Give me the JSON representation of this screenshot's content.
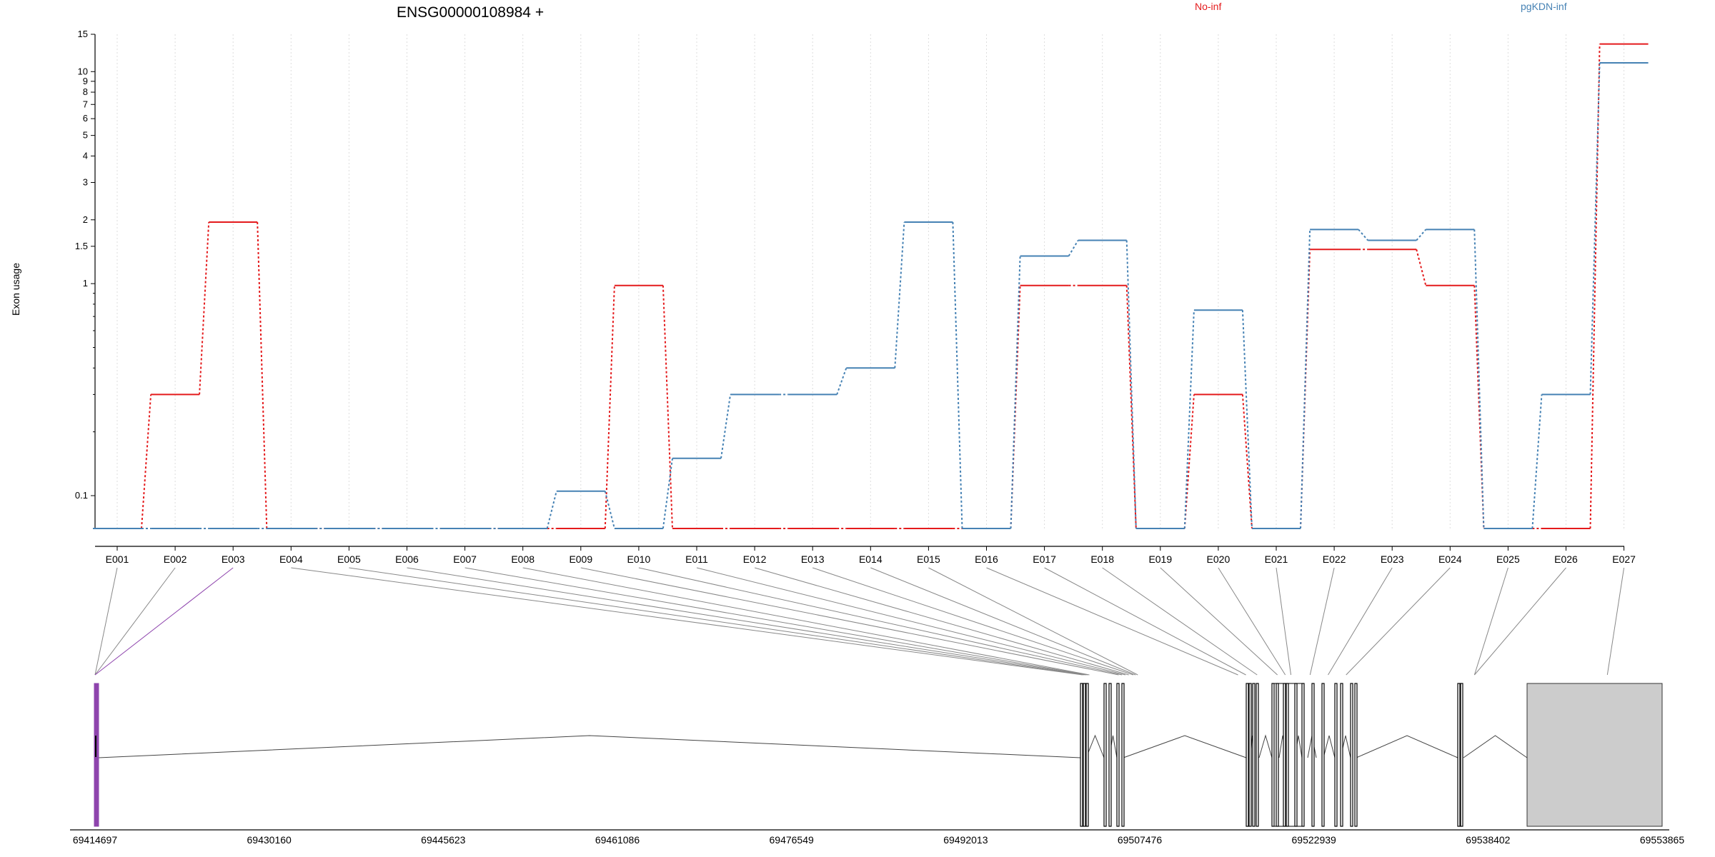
{
  "chart_data": {
    "type": "line",
    "title": "ENSG00000108984 +",
    "ylabel": "Exon usage",
    "y_scale": "log",
    "ylim": [
      0.07,
      15
    ],
    "yticks": [
      0.1,
      1,
      1.5,
      2,
      3,
      4,
      5,
      6,
      7,
      8,
      9,
      10,
      15
    ],
    "grid": "vertical dotted lines at each exon",
    "legend_position": "top-right",
    "categories": [
      "E001",
      "E002",
      "E003",
      "E004",
      "E005",
      "E006",
      "E007",
      "E008",
      "E009",
      "E010",
      "E011",
      "E012",
      "E013",
      "E014",
      "E015",
      "E016",
      "E017",
      "E018",
      "E019",
      "E020",
      "E021",
      "E022",
      "E023",
      "E024",
      "E025",
      "E026",
      "E027"
    ],
    "series": [
      {
        "name": "No-inf",
        "color": "#e41a1c",
        "values": [
          0.07,
          0.3,
          1.95,
          0.07,
          0.07,
          0.07,
          0.07,
          0.07,
          0.07,
          0.98,
          0.07,
          0.07,
          0.07,
          0.07,
          0.07,
          0.07,
          0.98,
          0.98,
          0.07,
          0.3,
          0.07,
          1.45,
          1.45,
          0.98,
          0.07,
          0.07,
          13.5
        ]
      },
      {
        "name": "pgKDN-inf",
        "color": "#4682b4",
        "values": [
          0.07,
          0.07,
          0.07,
          0.07,
          0.07,
          0.07,
          0.07,
          0.07,
          0.105,
          0.07,
          0.15,
          0.3,
          0.3,
          0.4,
          1.95,
          0.07,
          1.35,
          1.6,
          0.07,
          0.75,
          0.07,
          1.8,
          1.6,
          1.8,
          0.07,
          0.3,
          11
        ]
      }
    ],
    "gene_model": {
      "coordinate_axis": {
        "range": [
          69414697,
          69553865
        ],
        "tick_labels": [
          "69414697",
          "69430160",
          "69445623",
          "69461086",
          "69476549",
          "69492013",
          "69507476",
          "69522939",
          "69538402",
          "69553865"
        ],
        "tick_values": [
          69414697,
          69430160,
          69445623,
          69461086,
          69476549,
          69492013,
          69507476,
          69522939,
          69538402,
          69553865
        ]
      },
      "highlight_color": "#8e44ad",
      "highlighted_exons": [
        "E001",
        "E002",
        "E003"
      ],
      "large_exon_color": "#cccccc",
      "exon_genomic_positions": [
        69414697,
        69414697,
        69414697,
        69502400,
        69502550,
        69502700,
        69502850,
        69503000,
        69505600,
        69505900,
        69506200,
        69506500,
        69506900,
        69507100,
        69507300,
        69516200,
        69516900,
        69517900,
        69519700,
        69520400,
        69520900,
        69522600,
        69524200,
        69525800,
        69537200,
        69537200,
        69549000
      ]
    }
  }
}
